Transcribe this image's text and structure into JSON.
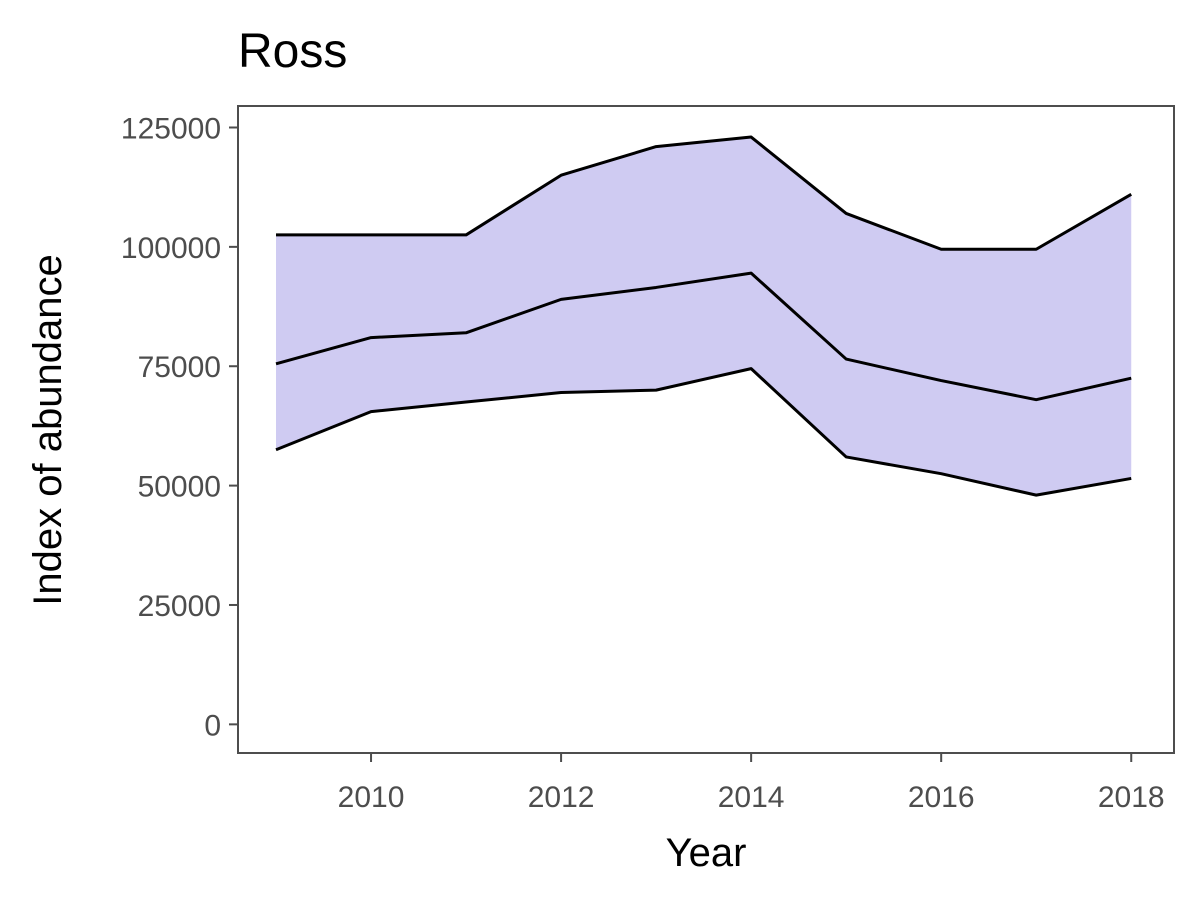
{
  "chart_data": {
    "type": "area",
    "title": "Ross",
    "xlabel": "Year",
    "ylabel": "Index of abundance",
    "x": [
      2009,
      2010,
      2011,
      2012,
      2013,
      2014,
      2015,
      2016,
      2017,
      2018
    ],
    "series": [
      {
        "role": "upper",
        "values": [
          102500,
          102500,
          102500,
          115000,
          121000,
          123000,
          107000,
          99500,
          99500,
          111000
        ]
      },
      {
        "role": "estimate",
        "values": [
          75500,
          81000,
          82000,
          89000,
          91500,
          94500,
          76500,
          72000,
          68000,
          72500
        ]
      },
      {
        "role": "lower",
        "values": [
          57500,
          65500,
          67500,
          69500,
          70000,
          74500,
          56000,
          52500,
          48000,
          51500
        ]
      }
    ],
    "x_ticks": [
      2010,
      2012,
      2014,
      2016,
      2018
    ],
    "y_ticks": [
      0,
      25000,
      50000,
      75000,
      100000,
      125000
    ],
    "xlim": [
      2008.6,
      2018.45
    ],
    "ylim": [
      -6000,
      129500
    ],
    "grid": false,
    "legend": "none",
    "colors": {
      "ribbon_fill": "#cfcbf2",
      "line": "#000000",
      "panel_border": "#4d4d4d",
      "tick_text": "#4d4d4d"
    }
  }
}
